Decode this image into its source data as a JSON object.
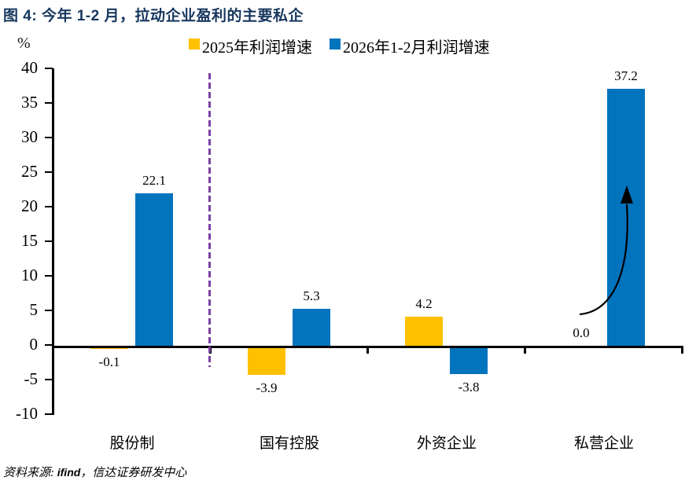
{
  "header": {
    "title": "图 4: 今年 1-2 月，拉动企业盈利的主要私企"
  },
  "chart_data": {
    "type": "bar",
    "title": "图 4: 今年 1-2 月，拉动企业盈利的主要私企",
    "unit_label": "%",
    "categories": [
      "股份制",
      "国有控股",
      "外资企业",
      "私营企业"
    ],
    "series": [
      {
        "name": "2025年利润增速",
        "color": "#FFC000",
        "values": [
          -0.1,
          -3.9,
          4.2,
          0.0
        ]
      },
      {
        "name": "2026年1-2月利润增速",
        "color": "#0273BD",
        "values": [
          22.1,
          5.3,
          -3.8,
          37.2
        ]
      }
    ],
    "value_labels": {
      "series0": [
        "-0.1",
        "-3.9",
        "4.2",
        "0.0"
      ],
      "series1": [
        "22.1",
        "5.3",
        "-3.8",
        "37.2"
      ]
    },
    "ylabel": "%",
    "ylim": [
      -10,
      40
    ],
    "yticks": [
      40,
      35,
      30,
      25,
      20,
      15,
      10,
      5,
      0,
      -5,
      -10
    ],
    "grid": false,
    "legend_position": "top",
    "annotations": [
      {
        "type": "dashed-separator",
        "after_category_index": 0,
        "color": "#7B3FA3"
      },
      {
        "type": "curved-arrow",
        "category": "私营企业",
        "series": "2026年1-2月利润增速",
        "color": "#000000"
      }
    ]
  },
  "footer": {
    "source_prefix": "资料来源: ",
    "source_bold": "ifind",
    "source_suffix": "，信达证券研发中心"
  }
}
